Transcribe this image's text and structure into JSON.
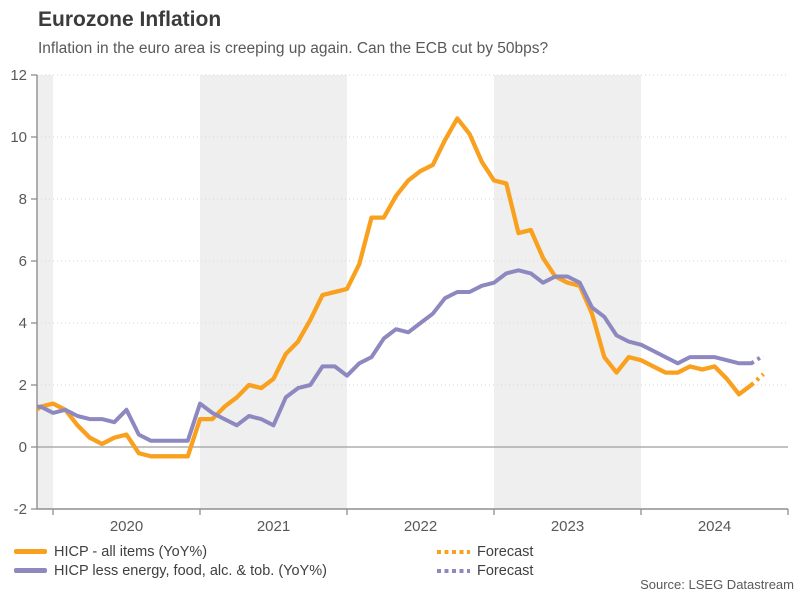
{
  "header": {
    "title": "Eurozone Inflation",
    "subtitle": "Inflation in the euro area is creeping up again. Can the ECB cut by 50bps?"
  },
  "source": "Source: LSEG Datastream",
  "legend": {
    "items": [
      {
        "label": "HICP - all items (YoY%)",
        "color": "#F9A11E",
        "style": "solid"
      },
      {
        "label": "HICP less energy, food, alc. & tob. (YoY%)",
        "color": "#8D89C0",
        "style": "solid"
      },
      {
        "label": "Forecast",
        "color": "#F9A11E",
        "style": "dotted"
      },
      {
        "label": "Forecast",
        "color": "#8D89C0",
        "style": "dotted"
      }
    ]
  },
  "chart_data": {
    "type": "line",
    "title": "Eurozone Inflation",
    "xlabel": "",
    "ylabel": "",
    "ylim": [
      -2,
      12
    ],
    "y_ticks": [
      -2,
      0,
      2,
      4,
      6,
      8,
      10,
      12
    ],
    "x_tick_years": [
      2020,
      2021,
      2022,
      2023,
      2024
    ],
    "x_range_months": [
      "2019-11",
      "2025-01"
    ],
    "shaded_years": [
      2019,
      2021,
      2023
    ],
    "grid": "horizontal-dotted",
    "legend_position": "bottom",
    "colors": {
      "orange": "#F9A11E",
      "purple": "#8D89C0",
      "band": "#EFEFEF",
      "grid": "#DCDCDC",
      "zero_line": "#9E9E9E",
      "axis": "#8F8F8F",
      "text": "#595959"
    },
    "series": [
      {
        "name": "HICP - all items (YoY%)",
        "color": "#F9A11E",
        "style": "solid",
        "start": "2019-11",
        "frequency": "monthly",
        "values": [
          1.0,
          1.3,
          1.4,
          1.2,
          0.7,
          0.3,
          0.1,
          0.3,
          0.4,
          -0.2,
          -0.3,
          -0.3,
          -0.3,
          -0.3,
          0.9,
          0.9,
          1.3,
          1.6,
          2.0,
          1.9,
          2.2,
          3.0,
          3.4,
          4.1,
          4.9,
          5.0,
          5.1,
          5.9,
          7.4,
          7.4,
          8.1,
          8.6,
          8.9,
          9.1,
          9.9,
          10.6,
          10.1,
          9.2,
          8.6,
          8.5,
          6.9,
          7.0,
          6.1,
          5.5,
          5.3,
          5.2,
          4.3,
          2.9,
          2.4,
          2.9,
          2.8,
          2.6,
          2.4,
          2.4,
          2.6,
          2.5,
          2.6,
          2.2,
          1.7,
          2.0
        ]
      },
      {
        "name": "HICP less energy, food, alc. & tob. (YoY%)",
        "color": "#8D89C0",
        "style": "solid",
        "start": "2019-11",
        "frequency": "monthly",
        "values": [
          1.3,
          1.3,
          1.1,
          1.2,
          1.0,
          0.9,
          0.9,
          0.8,
          1.2,
          0.4,
          0.2,
          0.2,
          0.2,
          0.2,
          1.4,
          1.1,
          0.9,
          0.7,
          1.0,
          0.9,
          0.7,
          1.6,
          1.9,
          2.0,
          2.6,
          2.6,
          2.3,
          2.7,
          2.9,
          3.5,
          3.8,
          3.7,
          4.0,
          4.3,
          4.8,
          5.0,
          5.0,
          5.2,
          5.3,
          5.6,
          5.7,
          5.6,
          5.3,
          5.5,
          5.5,
          5.3,
          4.5,
          4.2,
          3.6,
          3.4,
          3.3,
          3.1,
          2.9,
          2.7,
          2.9,
          2.9,
          2.9,
          2.8,
          2.7,
          2.7
        ]
      },
      {
        "name": "Forecast (HICP - all items)",
        "color": "#F9A11E",
        "style": "dotted",
        "start": "2024-10",
        "frequency": "monthly",
        "values": [
          2.0,
          2.35
        ]
      },
      {
        "name": "Forecast (HICP less energy, food, alc. & tob.)",
        "color": "#8D89C0",
        "style": "dotted",
        "start": "2024-10",
        "frequency": "monthly",
        "values": [
          2.7,
          2.95
        ]
      }
    ]
  }
}
